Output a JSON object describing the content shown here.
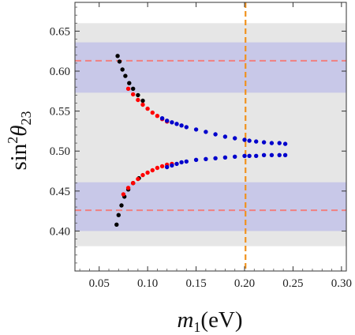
{
  "chart_data": {
    "type": "scatter",
    "title": "",
    "xlabel_main": "m",
    "xlabel_sub": "1",
    "xlabel_unit": "(eV)",
    "ylabel_main": "sin",
    "ylabel_sup": "2",
    "ylabel_theta": "θ",
    "ylabel_sub": "23",
    "xlim": [
      0.025,
      0.305
    ],
    "ylim": [
      0.35,
      0.686
    ],
    "x_ticks": [
      0.05,
      0.1,
      0.15,
      0.2,
      0.25,
      0.3
    ],
    "x_tick_labels": [
      "0.05",
      "0.10",
      "0.15",
      "0.20",
      "0.25",
      "0.30"
    ],
    "y_ticks": [
      0.4,
      0.45,
      0.5,
      0.55,
      0.6,
      0.65
    ],
    "y_tick_labels": [
      "0.40",
      "0.45",
      "0.50",
      "0.55",
      "0.60",
      "0.65"
    ],
    "grid": false,
    "bands": [
      {
        "name": "3sigma",
        "ymin": 0.381,
        "ymax": 0.66,
        "color": "#e6e6e6"
      },
      {
        "name": "1sigma-upper",
        "ymin": 0.573,
        "ymax": 0.636,
        "color": "#c8c8e8"
      },
      {
        "name": "1sigma-lower",
        "ymin": 0.4,
        "ymax": 0.461,
        "color": "#c8c8e8"
      }
    ],
    "hlines": [
      {
        "y": 0.613,
        "color": "#f08080",
        "style": "dashed"
      },
      {
        "y": 0.426,
        "color": "#f08080",
        "style": "dashed"
      }
    ],
    "vlines": [
      {
        "x": 0.201,
        "color": "#f0921e",
        "style": "dashed"
      }
    ],
    "series": [
      {
        "color": "#000000",
        "branches": [
          {
            "x": [
              0.069,
              0.071,
              0.074,
              0.077,
              0.081,
              0.085,
              0.09,
              0.095
            ],
            "y": [
              0.619,
              0.612,
              0.602,
              0.594,
              0.585,
              0.578,
              0.57,
              0.563
            ]
          },
          {
            "x": [
              0.068,
              0.07,
              0.073,
              0.076,
              0.08,
              0.085,
              0.091
            ],
            "y": [
              0.408,
              0.42,
              0.432,
              0.443,
              0.452,
              0.46,
              0.466
            ]
          }
        ]
      },
      {
        "color": "#ff0000",
        "branches": [
          {
            "x": [
              0.08,
              0.085,
              0.09,
              0.095,
              0.1,
              0.105,
              0.11,
              0.115,
              0.12
            ],
            "y": [
              0.578,
              0.571,
              0.564,
              0.558,
              0.553,
              0.548,
              0.544,
              0.54,
              0.537
            ]
          },
          {
            "x": [
              0.075,
              0.08,
              0.085,
              0.09,
              0.095,
              0.1,
              0.105,
              0.11,
              0.115,
              0.12,
              0.125
            ],
            "y": [
              0.446,
              0.454,
              0.46,
              0.465,
              0.47,
              0.473,
              0.476,
              0.479,
              0.481,
              0.483,
              0.484
            ]
          }
        ]
      },
      {
        "color": "#0000cc",
        "branches": [
          {
            "x": [
              0.115,
              0.12,
              0.125,
              0.13,
              0.135,
              0.14,
              0.15,
              0.16,
              0.17,
              0.18,
              0.19,
              0.2
            ],
            "y": [
              0.541,
              0.538,
              0.536,
              0.534,
              0.532,
              0.53,
              0.527,
              0.524,
              0.521,
              0.518,
              0.516,
              0.514
            ]
          },
          {
            "x": [
              0.12,
              0.125,
              0.13,
              0.135,
              0.14,
              0.15,
              0.16,
              0.17,
              0.18,
              0.19,
              0.2
            ],
            "y": [
              0.48,
              0.482,
              0.484,
              0.486,
              0.487,
              0.489,
              0.49,
              0.491,
              0.492,
              0.493,
              0.494
            ]
          },
          {
            "x": [
              0.205,
              0.212,
              0.22,
              0.228,
              0.236,
              0.242
            ],
            "y": [
              0.513,
              0.512,
              0.511,
              0.51,
              0.51,
              0.509
            ]
          },
          {
            "x": [
              0.205,
              0.212,
              0.22,
              0.228,
              0.236,
              0.242
            ],
            "y": [
              0.494,
              0.494,
              0.495,
              0.495,
              0.495,
              0.495
            ]
          }
        ]
      }
    ]
  }
}
